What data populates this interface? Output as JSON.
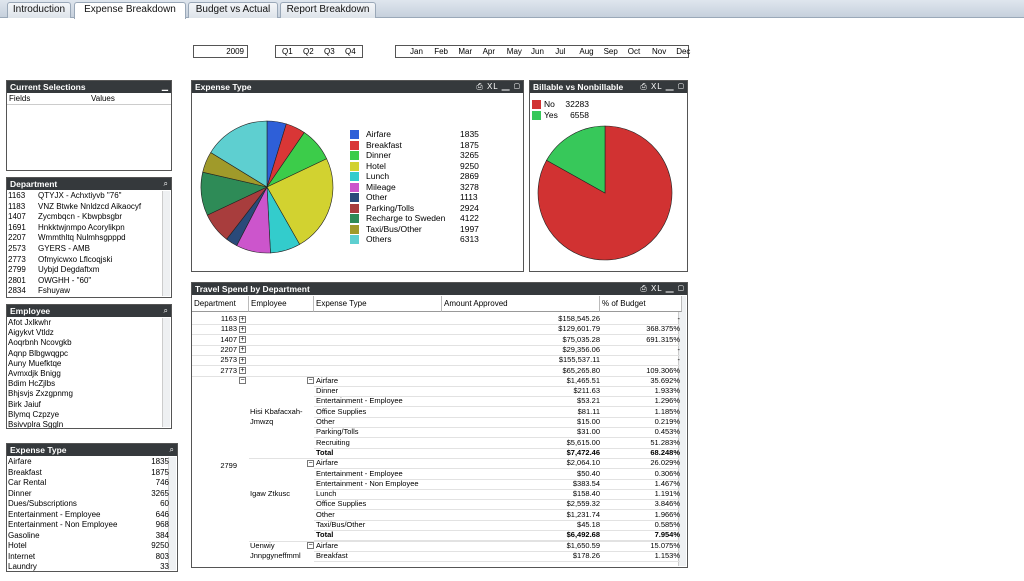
{
  "tabs": [
    "Introduction",
    "Expense Breakdown",
    "Budget vs Actual",
    "Report Breakdown"
  ],
  "filters": {
    "year": "2009",
    "quarters": [
      "Q1",
      "Q2",
      "Q3",
      "Q4"
    ],
    "months": [
      "Jan",
      "Feb",
      "Mar",
      "Apr",
      "May",
      "Jun",
      "Jul",
      "Aug",
      "Sep",
      "Oct",
      "Nov",
      "Dec"
    ]
  },
  "current_selections": {
    "title": "Current Selections",
    "col_fields": "Fields",
    "col_values": "Values"
  },
  "department_list": {
    "title": "Department",
    "items": [
      [
        "1163",
        "QTYJX - Achxtiyvb \"76\""
      ],
      [
        "1183",
        "VNZ Btwke Nnldzcd Aikaocyf"
      ],
      [
        "1407",
        "Zycmbqcn - Kbwpbsgbr"
      ],
      [
        "1691",
        "Hnkktwjnmpo Acorylikpn"
      ],
      [
        "2207",
        "Wmmthltq Nulmhsgpppd"
      ],
      [
        "2573",
        "GYERS - AMB"
      ],
      [
        "2773",
        "Ofmyicwxo Lflcoqjski"
      ],
      [
        "2799",
        "Uybjd Degdaftxm"
      ],
      [
        "2801",
        "OWGHH - \"60\""
      ],
      [
        "2834",
        "Fshuyaw"
      ]
    ]
  },
  "employee_list": {
    "title": "Employee",
    "items": [
      "Afot Jxlkwhr",
      "Aigykvt Vtldz",
      "Aoqrbnh Ncovgkb",
      "Aqnp Blbgwqgpc",
      "Auny Muefktqe",
      "Avmxdjk Bnigg",
      "Bdim HcZjlbs",
      "Bhjsvjs Zxzgpnmg",
      "Birk Jaiuf",
      "Blymq Czpzye",
      "Bsivvplra Sggln"
    ]
  },
  "expense_type_list": {
    "title": "Expense Type",
    "items": [
      [
        "Airfare",
        "1835"
      ],
      [
        "Breakfast",
        "1875"
      ],
      [
        "Car Rental",
        "746"
      ],
      [
        "Dinner",
        "3265"
      ],
      [
        "Dues/Subscriptions",
        "60"
      ],
      [
        "Entertainment - Employee",
        "646"
      ],
      [
        "Entertainment - Non Employee",
        "968"
      ],
      [
        "Gasoline",
        "384"
      ],
      [
        "Hotel",
        "9250"
      ],
      [
        "Internet",
        "803"
      ],
      [
        "Laundry",
        "33"
      ]
    ]
  },
  "expense_chart": {
    "title": "Expense Type",
    "icons": "⎙ XL ▁ ▢"
  },
  "billable_chart": {
    "title": "Billable vs Nonbillable",
    "icons": "⎙ XL ▁ ▢"
  },
  "chart_data": [
    {
      "type": "pie",
      "title": "Expense Type",
      "categories": [
        "Airfare",
        "Breakfast",
        "Dinner",
        "Hotel",
        "Lunch",
        "Mileage",
        "Other",
        "Parking/Tolls",
        "Recharge to Sweden",
        "Taxi/Bus/Other",
        "Others"
      ],
      "values": [
        1835,
        1875,
        3265,
        9250,
        2869,
        3278,
        1113,
        2924,
        4122,
        1997,
        6313
      ],
      "colors": [
        "#2e5fd8",
        "#d93636",
        "#3ccc4a",
        "#d2d230",
        "#33cccc",
        "#cc55cc",
        "#2a4a7a",
        "#a83d3d",
        "#2e8b57",
        "#a09a2a",
        "#5ecfd0"
      ]
    },
    {
      "type": "pie",
      "title": "Billable vs Nonbillable",
      "categories": [
        "No",
        "Yes"
      ],
      "values": [
        32283,
        6558
      ],
      "colors": [
        "#d13232",
        "#37c85a"
      ]
    }
  ],
  "travel_table": {
    "title": "Travel Spend by Department",
    "icons": "⎙ XL ▁ ▢",
    "headers": [
      "Department",
      "Employee",
      "Expense Type",
      "Amount Approved",
      "% of Budget"
    ],
    "dept_rows": [
      [
        "1163",
        "$158,545.26",
        "-"
      ],
      [
        "1183",
        "$129,601.79",
        "368.375%"
      ],
      [
        "1407",
        "$75,035.28",
        "691.315%"
      ],
      [
        "2207",
        "$29,356.06",
        "-"
      ],
      [
        "2573",
        "$155,537.11",
        "-"
      ],
      [
        "2773",
        "$65,265.80",
        "109.306%"
      ]
    ],
    "dept_2799": "2799",
    "groups": [
      {
        "employee": "Hisi Kbafacxah-Jmwzq",
        "rows": [
          [
            "Airfare",
            "$1,465.51",
            "35.692%"
          ],
          [
            "Dinner",
            "$211.63",
            "1.933%"
          ],
          [
            "Entertainment - Employee",
            "$53.21",
            "1.296%"
          ],
          [
            "Office Supplies",
            "$81.11",
            "1.185%"
          ],
          [
            "Other",
            "$15.00",
            "0.219%"
          ],
          [
            "Parking/Tolls",
            "$31.00",
            "0.453%"
          ],
          [
            "Recruiting",
            "$5,615.00",
            "51.283%"
          ],
          [
            "Total",
            "$7,472.46",
            "68.248%"
          ]
        ]
      },
      {
        "employee": "Igaw Ztkusc",
        "rows": [
          [
            "Airfare",
            "$2,064.10",
            "26.029%"
          ],
          [
            "Entertainment - Employee",
            "$50.40",
            "0.306%"
          ],
          [
            "Entertainment - Non Employee",
            "$383.54",
            "1.467%"
          ],
          [
            "Lunch",
            "$158.40",
            "1.191%"
          ],
          [
            "Office Supplies",
            "$2,559.32",
            "3.846%"
          ],
          [
            "Other",
            "$1,231.74",
            "1.966%"
          ],
          [
            "Taxi/Bus/Other",
            "$45.18",
            "0.585%"
          ],
          [
            "Total",
            "$6,492.68",
            "7.954%"
          ]
        ]
      },
      {
        "employee": "Uenwiy Jnnpgyneffmml",
        "rows": [
          [
            "Airfare",
            "$1,650.59",
            "15.075%"
          ],
          [
            "Breakfast",
            "$178.26",
            "1.153%"
          ]
        ]
      }
    ]
  }
}
